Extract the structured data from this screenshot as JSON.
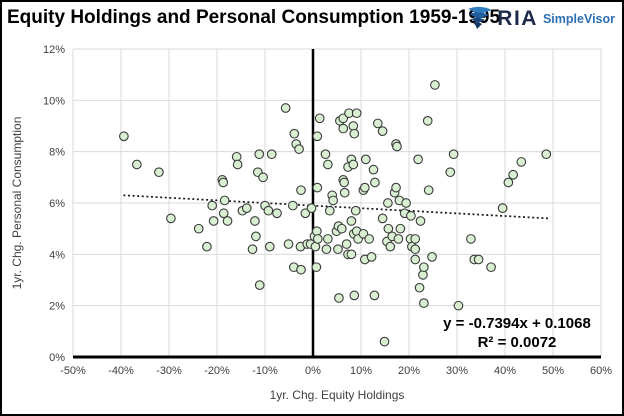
{
  "header": {
    "title": "Equity Holdings and Personal Consumption 1959-1995",
    "logo": {
      "icon": "eagle-icon",
      "brand": "RIA",
      "product": "SimpleVisor",
      "brand_color": "#1e2a4a",
      "product_color": "#2d6fb5"
    }
  },
  "chart_data": {
    "type": "scatter",
    "title": "Equity Holdings and Personal Consumption 1959-1995",
    "xlabel": "1yr. Chg. Equity Holdings",
    "ylabel": "1yr. Chg. Personal Consumption",
    "xlim": [
      -50,
      60
    ],
    "ylim": [
      0,
      12
    ],
    "x_ticks": [
      -50,
      -40,
      -30,
      -20,
      -10,
      0,
      10,
      20,
      30,
      40,
      50,
      60
    ],
    "x_tick_labels": [
      "-50%",
      "-40%",
      "-30%",
      "-20%",
      "-10%",
      "0%",
      "10%",
      "20%",
      "30%",
      "40%",
      "50%",
      "60%"
    ],
    "y_ticks": [
      0,
      2,
      4,
      6,
      8,
      10,
      12
    ],
    "y_tick_labels": [
      "0%",
      "2%",
      "4%",
      "6%",
      "8%",
      "10%",
      "12%"
    ],
    "grid": true,
    "legend": "none",
    "colors": {
      "grid": "#d9d9d9",
      "axis": "#000000",
      "tick_text": "#3f3f3f"
    },
    "marker": {
      "fill": "#d9efd2",
      "stroke": "#3a3a3a",
      "radius": 4.3
    },
    "equation": "y = -0.7394x + 0.1068",
    "r_squared": "R² = 0.0072",
    "trendline": {
      "style": "dotted",
      "color": "#1a1a1a",
      "x1": -39.5,
      "y1": 6.3,
      "x2": 49.0,
      "y2": 5.4
    },
    "points": [
      [
        -39.4,
        8.6
      ],
      [
        -36.7,
        7.5
      ],
      [
        -32.1,
        7.2
      ],
      [
        -29.6,
        5.4
      ],
      [
        -23.8,
        5.0
      ],
      [
        -22.1,
        4.3
      ],
      [
        -21.0,
        5.9
      ],
      [
        -20.7,
        5.3
      ],
      [
        -18.9,
        6.9
      ],
      [
        -18.7,
        6.8
      ],
      [
        -18.6,
        5.6
      ],
      [
        -18.4,
        6.1
      ],
      [
        -17.8,
        5.3
      ],
      [
        -15.9,
        7.8
      ],
      [
        -15.7,
        7.5
      ],
      [
        -14.7,
        5.7
      ],
      [
        -13.8,
        5.8
      ],
      [
        -12.6,
        4.2
      ],
      [
        -12.1,
        5.3
      ],
      [
        -11.9,
        4.7
      ],
      [
        -11.5,
        7.2
      ],
      [
        -11.2,
        7.9
      ],
      [
        -11.1,
        2.8
      ],
      [
        -10.4,
        7.0
      ],
      [
        -10.0,
        5.9
      ],
      [
        -9.3,
        5.7
      ],
      [
        -9.0,
        4.3
      ],
      [
        -8.6,
        7.9
      ],
      [
        -7.5,
        5.6
      ],
      [
        -5.7,
        9.7
      ],
      [
        -5.1,
        4.4
      ],
      [
        -4.2,
        5.9
      ],
      [
        -4.0,
        3.5
      ],
      [
        -3.9,
        8.7
      ],
      [
        -3.5,
        8.3
      ],
      [
        -2.9,
        8.1
      ],
      [
        -2.6,
        4.3
      ],
      [
        -2.5,
        6.5
      ],
      [
        -2.5,
        3.4
      ],
      [
        -1.6,
        5.6
      ],
      [
        -1.2,
        4.4
      ],
      [
        -0.5,
        4.4
      ],
      [
        -0.3,
        5.8
      ],
      [
        0.3,
        4.7
      ],
      [
        0.5,
        4.3
      ],
      [
        0.7,
        3.5
      ],
      [
        0.8,
        4.9
      ],
      [
        0.9,
        8.6
      ],
      [
        0.9,
        6.6
      ],
      [
        1.0,
        4.6
      ],
      [
        1.4,
        9.3
      ],
      [
        2.6,
        7.9
      ],
      [
        2.8,
        4.2
      ],
      [
        3.1,
        7.5
      ],
      [
        3.1,
        4.6
      ],
      [
        3.5,
        5.7
      ],
      [
        4.0,
        6.3
      ],
      [
        4.2,
        6.1
      ],
      [
        4.9,
        4.9
      ],
      [
        5.2,
        4.2
      ],
      [
        5.3,
        5.1
      ],
      [
        5.4,
        2.3
      ],
      [
        5.6,
        9.2
      ],
      [
        6.0,
        5.0
      ],
      [
        6.3,
        9.3
      ],
      [
        6.3,
        8.9
      ],
      [
        6.3,
        6.9
      ],
      [
        6.5,
        6.8
      ],
      [
        6.6,
        6.4
      ],
      [
        7.0,
        4.4
      ],
      [
        7.3,
        7.4
      ],
      [
        7.3,
        4.0
      ],
      [
        7.5,
        9.5
      ],
      [
        8.0,
        7.7
      ],
      [
        8.0,
        5.3
      ],
      [
        8.0,
        4.0
      ],
      [
        8.4,
        9.0
      ],
      [
        8.4,
        7.5
      ],
      [
        8.5,
        4.8
      ],
      [
        8.6,
        8.7
      ],
      [
        8.6,
        2.4
      ],
      [
        8.9,
        5.7
      ],
      [
        9.1,
        9.5
      ],
      [
        9.1,
        4.9
      ],
      [
        9.4,
        4.6
      ],
      [
        10.5,
        6.5
      ],
      [
        10.5,
        4.8
      ],
      [
        10.8,
        6.6
      ],
      [
        10.8,
        3.8
      ],
      [
        11.0,
        7.7
      ],
      [
        11.7,
        4.6
      ],
      [
        12.2,
        3.9
      ],
      [
        12.6,
        7.3
      ],
      [
        12.8,
        2.4
      ],
      [
        12.9,
        6.8
      ],
      [
        13.5,
        9.1
      ],
      [
        14.5,
        8.8
      ],
      [
        14.5,
        5.4
      ],
      [
        14.9,
        0.6
      ],
      [
        15.4,
        4.5
      ],
      [
        15.6,
        6.0
      ],
      [
        15.7,
        5.0
      ],
      [
        16.1,
        4.3
      ],
      [
        16.5,
        4.7
      ],
      [
        17.0,
        6.4
      ],
      [
        17.3,
        8.3
      ],
      [
        17.3,
        6.6
      ],
      [
        17.5,
        8.2
      ],
      [
        17.8,
        4.6
      ],
      [
        18.0,
        6.1
      ],
      [
        18.2,
        5.0
      ],
      [
        19.1,
        5.6
      ],
      [
        19.4,
        6.0
      ],
      [
        20.3,
        4.6
      ],
      [
        20.4,
        5.5
      ],
      [
        20.6,
        4.3
      ],
      [
        21.3,
        4.6
      ],
      [
        21.3,
        4.2
      ],
      [
        21.3,
        3.8
      ],
      [
        21.9,
        7.7
      ],
      [
        22.2,
        2.7
      ],
      [
        22.4,
        5.3
      ],
      [
        22.9,
        3.2
      ],
      [
        23.1,
        3.5
      ],
      [
        23.1,
        2.1
      ],
      [
        23.9,
        9.2
      ],
      [
        24.1,
        6.5
      ],
      [
        24.8,
        3.9
      ],
      [
        25.4,
        10.6
      ],
      [
        28.6,
        7.2
      ],
      [
        29.3,
        7.9
      ],
      [
        30.3,
        2.0
      ],
      [
        32.9,
        4.6
      ],
      [
        33.6,
        3.8
      ],
      [
        34.5,
        3.8
      ],
      [
        37.1,
        3.5
      ],
      [
        39.5,
        5.8
      ],
      [
        40.7,
        6.8
      ],
      [
        41.7,
        7.1
      ],
      [
        43.4,
        7.6
      ],
      [
        48.6,
        7.9
      ]
    ]
  }
}
